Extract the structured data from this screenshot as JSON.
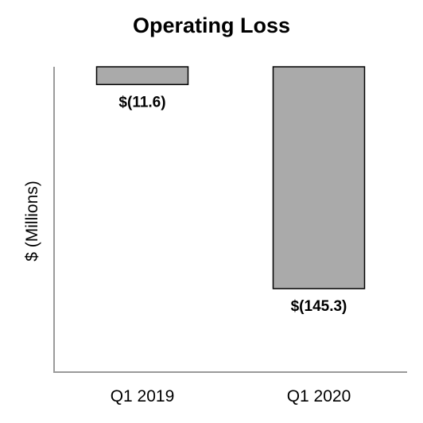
{
  "chart_data": {
    "type": "bar",
    "title": "Operating Loss",
    "xlabel": "",
    "ylabel": "$ (Millions)",
    "categories": [
      "Q1 2019",
      "Q1 2020"
    ],
    "values": [
      -11.6,
      -145.3
    ],
    "data_labels": [
      "$(11.6)",
      "$(145.3)"
    ],
    "ylim": [
      -200,
      0
    ],
    "bar_color": "#aaaaaa",
    "grid": false,
    "legend": "none"
  }
}
